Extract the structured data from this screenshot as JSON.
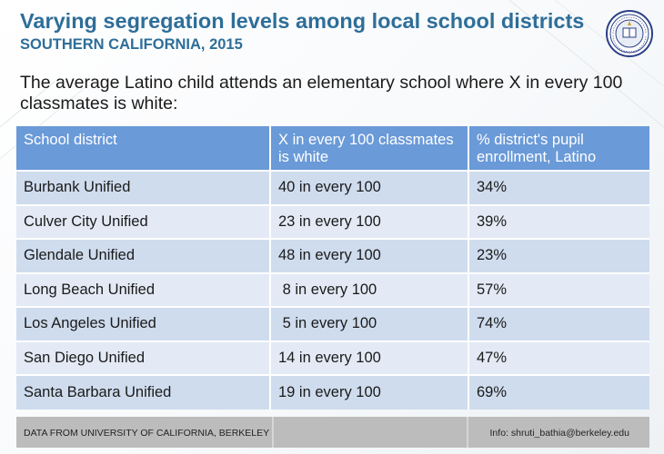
{
  "slide": {
    "title": "Varying segregation levels among local school districts",
    "subtitle": "SOUTHERN CALIFORNIA, 2015",
    "intro": "The average Latino child attends an elementary school where X in every 100 classmates is white:",
    "seal_icon": "uc-berkeley-seal-icon",
    "colors": {
      "title": "#2e6e99",
      "header_bg": "#6a9ad8",
      "row_bg": "#cfdcee",
      "footer_bg": "#bcbcbc"
    }
  },
  "table": {
    "headers": [
      "School district",
      "X in every 100 classmates is white",
      "% district's pupil enrollment, Latino"
    ],
    "rows": [
      [
        "Burbank Unified",
        "40 in every 100",
        "34%"
      ],
      [
        "Culver City Unified",
        "23 in every 100",
        "39%"
      ],
      [
        "Glendale Unified",
        "48 in every 100",
        "23%"
      ],
      [
        "Long Beach Unified",
        " 8 in every 100",
        "57%"
      ],
      [
        "Los Angeles Unified",
        " 5 in every 100",
        "74%"
      ],
      [
        "San Diego Unified",
        "14 in every 100",
        "47%"
      ],
      [
        "Santa Barbara Unified",
        "19 in every 100",
        "69%"
      ]
    ]
  },
  "footer": {
    "source": "DATA FROM UNIVERSITY OF CALIFORNIA, BERKELEY",
    "contact": "Info: shruti_bathia@berkeley.edu"
  }
}
